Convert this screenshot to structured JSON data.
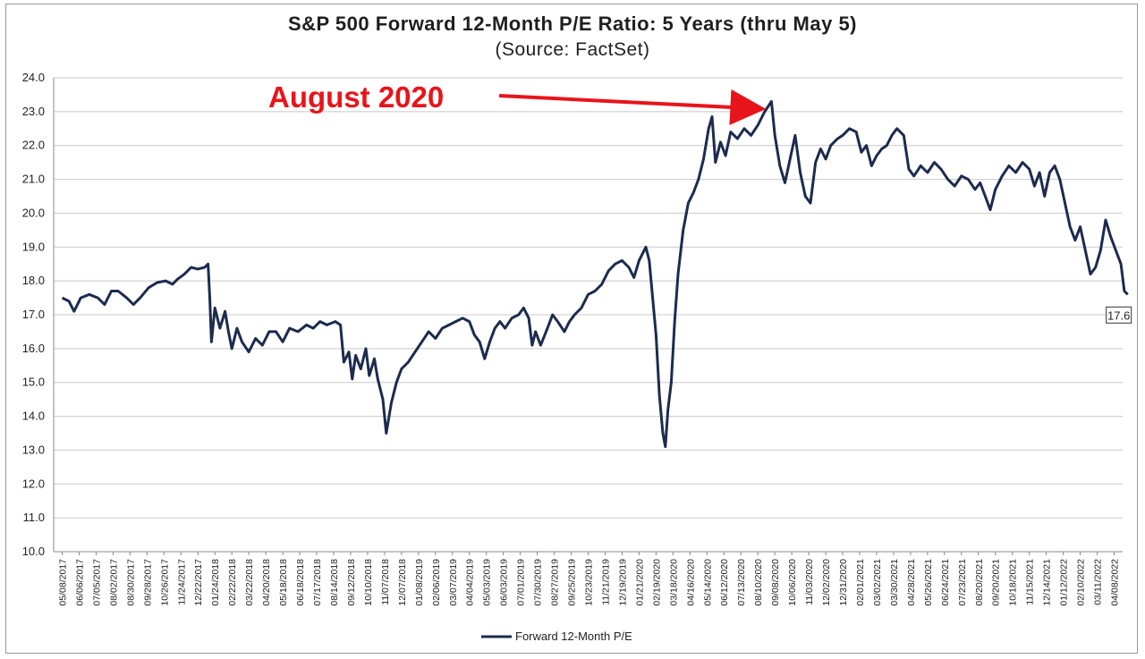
{
  "chart_data": {
    "type": "line",
    "title": "S&P 500 Forward 12-Month P/E Ratio: 5 Years (thru May 5)",
    "subtitle": "(Source: FactSet)",
    "ylim": [
      10.0,
      24.0
    ],
    "yticks": [
      "10.0",
      "11.0",
      "12.0",
      "13.0",
      "14.0",
      "15.0",
      "16.0",
      "17.0",
      "18.0",
      "19.0",
      "20.0",
      "21.0",
      "22.0",
      "23.0",
      "24.0"
    ],
    "xticks": [
      "05/08/2017",
      "06/06/2017",
      "07/05/2017",
      "08/02/2017",
      "08/30/2017",
      "09/28/2017",
      "10/26/2017",
      "11/24/2017",
      "12/22/2017",
      "01/24/2018",
      "02/22/2018",
      "03/22/2018",
      "04/20/2018",
      "05/18/2018",
      "06/18/2018",
      "07/17/2018",
      "08/14/2018",
      "09/12/2018",
      "10/10/2018",
      "11/07/2018",
      "12/07/2018",
      "01/08/2019",
      "02/06/2019",
      "03/07/2019",
      "04/04/2019",
      "05/03/2019",
      "06/03/2019",
      "07/01/2019",
      "07/30/2019",
      "08/27/2019",
      "09/25/2019",
      "10/23/2019",
      "11/21/2019",
      "12/19/2019",
      "01/21/2020",
      "02/19/2020",
      "03/18/2020",
      "04/16/2020",
      "05/14/2020",
      "06/12/2020",
      "07/13/2020",
      "08/10/2020",
      "09/08/2020",
      "10/06/2020",
      "11/03/2020",
      "12/02/2020",
      "12/31/2020",
      "02/01/2021",
      "03/02/2021",
      "03/30/2021",
      "04/28/2021",
      "05/26/2021",
      "06/24/2021",
      "07/23/2021",
      "08/20/2021",
      "09/20/2021",
      "10/18/2021",
      "11/15/2021",
      "12/14/2021",
      "01/12/2022",
      "02/10/2022",
      "03/11/2022",
      "04/08/2022"
    ],
    "series": [
      {
        "name": "Forward 12-Month P/E",
        "color": "#1c2b4e",
        "points": [
          [
            0,
            17.5
          ],
          [
            0.4,
            17.4
          ],
          [
            0.7,
            17.1
          ],
          [
            1.1,
            17.5
          ],
          [
            1.6,
            17.6
          ],
          [
            2.1,
            17.5
          ],
          [
            2.5,
            17.3
          ],
          [
            2.9,
            17.7
          ],
          [
            3.3,
            17.7
          ],
          [
            3.8,
            17.5
          ],
          [
            4.2,
            17.3
          ],
          [
            4.6,
            17.5
          ],
          [
            5.1,
            17.8
          ],
          [
            5.6,
            17.95
          ],
          [
            6.1,
            18.0
          ],
          [
            6.5,
            17.9
          ],
          [
            6.8,
            18.05
          ],
          [
            7.2,
            18.2
          ],
          [
            7.6,
            18.4
          ],
          [
            8.0,
            18.35
          ],
          [
            8.4,
            18.4
          ],
          [
            8.6,
            18.5
          ],
          [
            8.7,
            17.5
          ],
          [
            8.8,
            16.2
          ],
          [
            9.0,
            17.2
          ],
          [
            9.3,
            16.6
          ],
          [
            9.6,
            17.1
          ],
          [
            9.8,
            16.5
          ],
          [
            10.0,
            16.0
          ],
          [
            10.3,
            16.6
          ],
          [
            10.6,
            16.2
          ],
          [
            11.0,
            15.9
          ],
          [
            11.4,
            16.3
          ],
          [
            11.8,
            16.1
          ],
          [
            12.2,
            16.5
          ],
          [
            12.6,
            16.5
          ],
          [
            13.0,
            16.2
          ],
          [
            13.4,
            16.6
          ],
          [
            13.9,
            16.5
          ],
          [
            14.4,
            16.7
          ],
          [
            14.8,
            16.6
          ],
          [
            15.2,
            16.8
          ],
          [
            15.6,
            16.7
          ],
          [
            16.1,
            16.8
          ],
          [
            16.4,
            16.7
          ],
          [
            16.6,
            15.6
          ],
          [
            16.9,
            15.9
          ],
          [
            17.1,
            15.1
          ],
          [
            17.3,
            15.8
          ],
          [
            17.6,
            15.4
          ],
          [
            17.9,
            16.0
          ],
          [
            18.1,
            15.2
          ],
          [
            18.4,
            15.7
          ],
          [
            18.6,
            15.1
          ],
          [
            18.9,
            14.5
          ],
          [
            19.1,
            13.5
          ],
          [
            19.4,
            14.4
          ],
          [
            19.7,
            15.0
          ],
          [
            20.0,
            15.4
          ],
          [
            20.4,
            15.6
          ],
          [
            20.8,
            15.9
          ],
          [
            21.2,
            16.2
          ],
          [
            21.6,
            16.5
          ],
          [
            22.0,
            16.3
          ],
          [
            22.4,
            16.6
          ],
          [
            22.8,
            16.7
          ],
          [
            23.2,
            16.8
          ],
          [
            23.6,
            16.9
          ],
          [
            24.0,
            16.8
          ],
          [
            24.3,
            16.4
          ],
          [
            24.6,
            16.2
          ],
          [
            24.9,
            15.7
          ],
          [
            25.2,
            16.2
          ],
          [
            25.5,
            16.6
          ],
          [
            25.8,
            16.8
          ],
          [
            26.1,
            16.6
          ],
          [
            26.5,
            16.9
          ],
          [
            26.9,
            17.0
          ],
          [
            27.2,
            17.2
          ],
          [
            27.5,
            16.9
          ],
          [
            27.7,
            16.1
          ],
          [
            27.9,
            16.5
          ],
          [
            28.2,
            16.1
          ],
          [
            28.6,
            16.6
          ],
          [
            28.9,
            17.0
          ],
          [
            29.2,
            16.8
          ],
          [
            29.6,
            16.5
          ],
          [
            29.9,
            16.8
          ],
          [
            30.2,
            17.0
          ],
          [
            30.6,
            17.2
          ],
          [
            31.0,
            17.6
          ],
          [
            31.4,
            17.7
          ],
          [
            31.8,
            17.9
          ],
          [
            32.2,
            18.3
          ],
          [
            32.6,
            18.5
          ],
          [
            33.0,
            18.6
          ],
          [
            33.4,
            18.4
          ],
          [
            33.7,
            18.1
          ],
          [
            34.0,
            18.6
          ],
          [
            34.4,
            19.0
          ],
          [
            34.6,
            18.6
          ],
          [
            34.8,
            17.5
          ],
          [
            35.0,
            16.4
          ],
          [
            35.2,
            14.6
          ],
          [
            35.4,
            13.5
          ],
          [
            35.55,
            13.1
          ],
          [
            35.7,
            14.2
          ],
          [
            35.9,
            15.0
          ],
          [
            36.1,
            16.8
          ],
          [
            36.3,
            18.2
          ],
          [
            36.6,
            19.5
          ],
          [
            36.9,
            20.3
          ],
          [
            37.2,
            20.6
          ],
          [
            37.5,
            21.0
          ],
          [
            37.8,
            21.6
          ],
          [
            38.1,
            22.5
          ],
          [
            38.3,
            22.85
          ],
          [
            38.5,
            21.5
          ],
          [
            38.8,
            22.1
          ],
          [
            39.1,
            21.7
          ],
          [
            39.4,
            22.4
          ],
          [
            39.8,
            22.2
          ],
          [
            40.2,
            22.5
          ],
          [
            40.6,
            22.3
          ],
          [
            41.0,
            22.6
          ],
          [
            41.4,
            23.0
          ],
          [
            41.8,
            23.3
          ],
          [
            42.0,
            22.3
          ],
          [
            42.3,
            21.4
          ],
          [
            42.6,
            20.9
          ],
          [
            42.9,
            21.6
          ],
          [
            43.2,
            22.3
          ],
          [
            43.5,
            21.2
          ],
          [
            43.8,
            20.5
          ],
          [
            44.1,
            20.3
          ],
          [
            44.4,
            21.5
          ],
          [
            44.7,
            21.9
          ],
          [
            45.0,
            21.6
          ],
          [
            45.3,
            22.0
          ],
          [
            45.7,
            22.2
          ],
          [
            46.0,
            22.3
          ],
          [
            46.4,
            22.5
          ],
          [
            46.8,
            22.4
          ],
          [
            47.1,
            21.8
          ],
          [
            47.4,
            22.0
          ],
          [
            47.7,
            21.4
          ],
          [
            48.0,
            21.7
          ],
          [
            48.3,
            21.9
          ],
          [
            48.6,
            22.0
          ],
          [
            48.9,
            22.3
          ],
          [
            49.2,
            22.5
          ],
          [
            49.6,
            22.3
          ],
          [
            49.9,
            21.3
          ],
          [
            50.2,
            21.1
          ],
          [
            50.6,
            21.4
          ],
          [
            51.0,
            21.2
          ],
          [
            51.4,
            21.5
          ],
          [
            51.8,
            21.3
          ],
          [
            52.2,
            21.0
          ],
          [
            52.6,
            20.8
          ],
          [
            53.0,
            21.1
          ],
          [
            53.4,
            21.0
          ],
          [
            53.8,
            20.7
          ],
          [
            54.1,
            20.9
          ],
          [
            54.4,
            20.5
          ],
          [
            54.7,
            20.1
          ],
          [
            55.0,
            20.7
          ],
          [
            55.4,
            21.1
          ],
          [
            55.8,
            21.4
          ],
          [
            56.2,
            21.2
          ],
          [
            56.6,
            21.5
          ],
          [
            57.0,
            21.3
          ],
          [
            57.3,
            20.8
          ],
          [
            57.6,
            21.2
          ],
          [
            57.9,
            20.5
          ],
          [
            58.2,
            21.2
          ],
          [
            58.5,
            21.4
          ],
          [
            58.8,
            21.0
          ],
          [
            59.1,
            20.3
          ],
          [
            59.4,
            19.6
          ],
          [
            59.7,
            19.2
          ],
          [
            60.0,
            19.6
          ],
          [
            60.3,
            18.9
          ],
          [
            60.6,
            18.2
          ],
          [
            60.9,
            18.4
          ],
          [
            61.2,
            18.9
          ],
          [
            61.5,
            19.8
          ],
          [
            61.8,
            19.3
          ],
          [
            62.1,
            18.9
          ],
          [
            62.4,
            18.5
          ],
          [
            62.6,
            17.7
          ],
          [
            62.8,
            17.6
          ]
        ]
      }
    ],
    "last_value_label": "17.6",
    "annotation": {
      "text": "August 2020",
      "target": [
        41.8,
        23.3
      ]
    },
    "legend": {
      "position": "bottom-center"
    },
    "grid": true
  }
}
